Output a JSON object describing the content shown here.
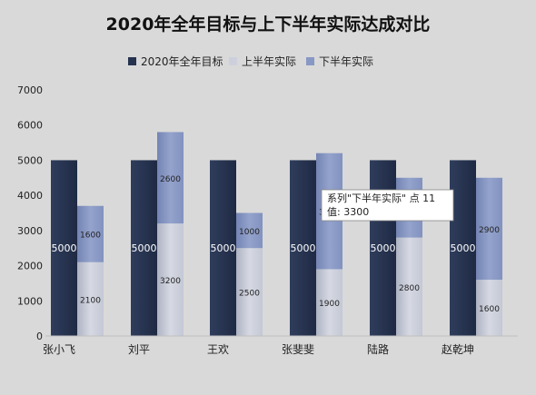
{
  "chart_data": {
    "type": "bar",
    "title": "2020年全年目标与上下半年实际达成对比",
    "categories": [
      "张小飞",
      "刘平",
      "王欢",
      "张斐斐",
      "陆路",
      "赵乾坤"
    ],
    "ylim": [
      0,
      7000
    ],
    "yticks": [
      0,
      1000,
      2000,
      3000,
      4000,
      5000,
      6000,
      7000
    ],
    "grid": false,
    "legend_position": "top",
    "series": [
      {
        "name": "2020年全年目标",
        "values": [
          5000,
          5000,
          5000,
          5000,
          5000,
          5000
        ],
        "color": "#26334f",
        "stack": "target"
      },
      {
        "name": "上半年实际",
        "values": [
          2100,
          3200,
          2500,
          1900,
          2800,
          1600
        ],
        "color": "#cdd0dc",
        "stack": "actual"
      },
      {
        "name": "下半年实际",
        "values": [
          1600,
          2600,
          1000,
          3300,
          null,
          2900
        ],
        "color": "#8898c4",
        "stack": "actual"
      }
    ],
    "tooltip": {
      "line1": "系列\"下半年实际\" 点 11",
      "line2": "值: 3300"
    }
  }
}
